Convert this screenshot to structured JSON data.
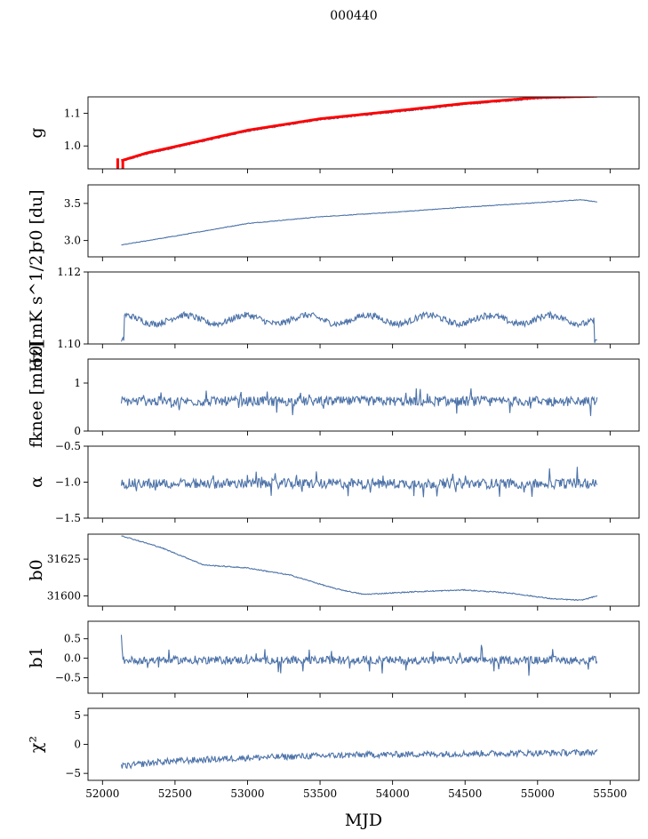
{
  "figure": {
    "title": "000440",
    "xlabel": "MJD"
  },
  "colors": {
    "series": "#4c72a8",
    "fit": "#ff0000",
    "axis": "#000000"
  },
  "chart_data": {
    "type": "line",
    "xlim": [
      51900,
      55700
    ],
    "x_range": [
      52130,
      55410
    ],
    "x_ticks": [
      52000,
      52500,
      53000,
      53500,
      54000,
      54500,
      55000,
      55500
    ],
    "x_tick_labels": [
      "52000",
      "52500",
      "53000",
      "53500",
      "54000",
      "54500",
      "55000",
      "55500"
    ],
    "panels": [
      {
        "ylabel": "g",
        "ylim": [
          0.93,
          1.15
        ],
        "yticks": [
          1.0,
          1.1
        ],
        "ytick_labels": [
          "1.0",
          "1.1"
        ],
        "series": [
          {
            "style": "trend",
            "anchors": [
              [
                52130,
                0.952
              ],
              [
                52300,
                0.975
              ],
              [
                52600,
                1.005
              ],
              [
                53000,
                1.045
              ],
              [
                53500,
                1.08
              ],
              [
                54000,
                1.103
              ],
              [
                54500,
                1.127
              ],
              [
                55000,
                1.145
              ],
              [
                55410,
                1.152
              ]
            ],
            "noise": 0.002
          },
          {
            "style": "fit",
            "anchors": [
              [
                52130,
                0.955
              ],
              [
                52300,
                0.978
              ],
              [
                52600,
                1.008
              ],
              [
                53000,
                1.048
              ],
              [
                53500,
                1.083
              ],
              [
                54000,
                1.106
              ],
              [
                54500,
                1.13
              ],
              [
                55000,
                1.148
              ],
              [
                55410,
                1.152
              ]
            ]
          }
        ],
        "spikes": [
          [
            52105,
            0.93,
            0.962
          ],
          [
            52140,
            0.93,
            0.955
          ]
        ]
      },
      {
        "ylabel": "σ0 [du]",
        "ylim": [
          2.78,
          3.75
        ],
        "yticks": [
          3.0,
          3.5
        ],
        "ytick_labels": [
          "3.0",
          "3.5"
        ],
        "series": [
          {
            "style": "trend",
            "anchors": [
              [
                52130,
                2.94
              ],
              [
                52500,
                3.06
              ],
              [
                53000,
                3.23
              ],
              [
                53500,
                3.32
              ],
              [
                54000,
                3.38
              ],
              [
                54500,
                3.45
              ],
              [
                55000,
                3.51
              ],
              [
                55300,
                3.55
              ],
              [
                55410,
                3.52
              ]
            ],
            "noise": 0.004
          }
        ]
      },
      {
        "ylabel": "σ0[mK s^1/2]",
        "ylim": [
          1.1,
          1.12
        ],
        "yticks": [
          1.1,
          1.12
        ],
        "ytick_labels": [
          "1.10",
          "1.12"
        ],
        "series": [
          {
            "style": "wave",
            "base": 1.1068,
            "amp": 0.0012,
            "period": 420,
            "noise": 0.0009,
            "edges": true
          }
        ]
      },
      {
        "ylabel": "fknee [mHz]",
        "ylim": [
          0,
          1.5
        ],
        "yticks": [
          0,
          1
        ],
        "ytick_labels": [
          "0",
          "1"
        ],
        "series": [
          {
            "style": "noisy",
            "base": 0.62,
            "noise": 0.1,
            "spike": 0.25
          }
        ]
      },
      {
        "ylabel": "α",
        "ylim": [
          -1.5,
          -0.5
        ],
        "yticks": [
          -1.5,
          -1.0,
          -0.5
        ],
        "ytick_labels": [
          "−1.5",
          "−1.0",
          "−0.5"
        ],
        "series": [
          {
            "style": "noisy",
            "base": -1.02,
            "noise": 0.07,
            "spike": 0.18
          }
        ]
      },
      {
        "ylabel": "b0",
        "ylim": [
          31593,
          31642
        ],
        "yticks": [
          31600,
          31625
        ],
        "ytick_labels": [
          "31600",
          "31625"
        ],
        "series": [
          {
            "style": "trend",
            "anchors": [
              [
                52130,
                31641
              ],
              [
                52400,
                31633
              ],
              [
                52700,
                31621
              ],
              [
                53000,
                31619
              ],
              [
                53300,
                31614
              ],
              [
                53600,
                31605
              ],
              [
                53800,
                31601
              ],
              [
                54200,
                31603
              ],
              [
                54500,
                31604
              ],
              [
                54800,
                31602
              ],
              [
                55100,
                31598
              ],
              [
                55300,
                31597
              ],
              [
                55410,
                31600
              ]
            ],
            "noise": 0.35
          }
        ]
      },
      {
        "ylabel": "b1",
        "ylim": [
          -0.9,
          0.95
        ],
        "yticks": [
          -0.5,
          0.0,
          0.5
        ],
        "ytick_labels": [
          "−0.5",
          "0.0",
          "0.5"
        ],
        "series": [
          {
            "style": "noisy",
            "base": -0.05,
            "noise": 0.1,
            "spike": 0.35,
            "start": 0.6
          }
        ]
      },
      {
        "ylabel": "χ²",
        "ylim": [
          -6.2,
          6.2
        ],
        "yticks": [
          -5,
          0,
          5
        ],
        "ytick_labels": [
          "−5",
          "0",
          "5"
        ],
        "series": [
          {
            "style": "rising",
            "anchors": [
              [
                52130,
                -3.8
              ],
              [
                52400,
                -3.0
              ],
              [
                53000,
                -2.3
              ],
              [
                53800,
                -1.8
              ],
              [
                54500,
                -1.6
              ],
              [
                55410,
                -1.4
              ]
            ],
            "noise": 0.55
          }
        ]
      }
    ]
  }
}
